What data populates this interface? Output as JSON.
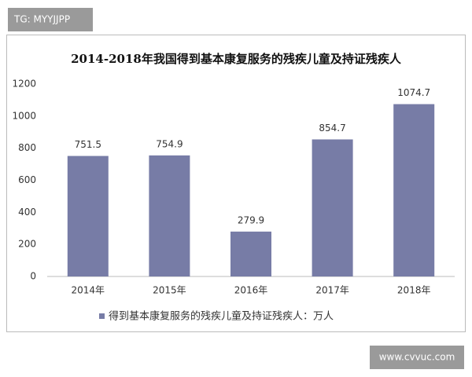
{
  "chart_data": {
    "type": "bar",
    "title": "2014-2018年我国得到基本康复服务的残疾儿童及持证残疾人",
    "categories": [
      "2014年",
      "2015年",
      "2016年",
      "2017年",
      "2018年"
    ],
    "series": [
      {
        "name": "得到基本康复服务的残疾儿童及持证残疾人：万人",
        "color": "#777ca6",
        "values": [
          751.5,
          754.9,
          279.9,
          854.7,
          1074.7
        ]
      }
    ],
    "ylim": [
      0,
      1200
    ],
    "yticks": [
      0,
      200,
      400,
      600,
      800,
      1000,
      1200
    ],
    "grid": false,
    "legend": "bottom"
  },
  "watermarks": [
    "TG: MYYJJPP",
    "www.cvvuc.com"
  ]
}
